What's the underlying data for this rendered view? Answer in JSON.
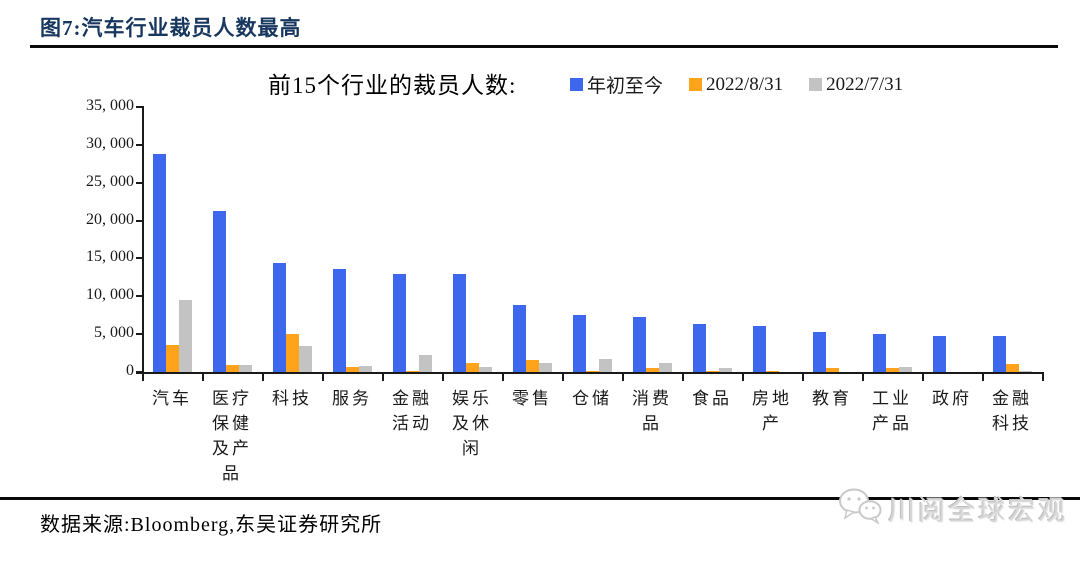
{
  "page": {
    "figure_title": "图7:汽车行业裁员人数最高",
    "source_note": "数据来源:Bloomberg,东吴证券研究所",
    "watermark": "川阅全球宏观"
  },
  "chart": {
    "title": "前15个行业的裁员人数:",
    "legend": [
      {
        "label": "年初至今",
        "color": "#3D68EE"
      },
      {
        "label": "2022/8/31",
        "color": "#FFA31A"
      },
      {
        "label": "2022/7/31",
        "color": "#C3C3C3"
      }
    ],
    "y_axis": {
      "min": 0,
      "max": 35000,
      "step": 5000,
      "tick_labels": [
        "35, 000",
        "30, 000",
        "25, 000",
        "20, 000",
        "15, 000",
        "10, 000",
        "5, 000",
        "0"
      ]
    }
  },
  "chart_data": {
    "type": "bar",
    "title": "前15个行业的裁员人数:",
    "categories": [
      "汽车",
      "医疗保健及产品",
      "科技",
      "服务",
      "金融活动",
      "娱乐及休闲",
      "零售",
      "仓储",
      "消费品",
      "食品",
      "房地产",
      "教育",
      "工业产品",
      "政府",
      "金融科技"
    ],
    "category_label_lines": [
      [
        "汽车"
      ],
      [
        "医疗",
        "保健",
        "及产",
        "品"
      ],
      [
        "科技"
      ],
      [
        "服务"
      ],
      [
        "金融",
        "活动"
      ],
      [
        "娱乐",
        "及休",
        "闲"
      ],
      [
        "零售"
      ],
      [
        "仓储"
      ],
      [
        "消费",
        "品"
      ],
      [
        "食品"
      ],
      [
        "房地",
        "产"
      ],
      [
        "教育"
      ],
      [
        "工业",
        "产品"
      ],
      [
        "政府"
      ],
      [
        "金融",
        "科技"
      ]
    ],
    "series": [
      {
        "key": "ytd",
        "name": "年初至今",
        "color": "#3D68EE",
        "values": [
          28800,
          21200,
          14400,
          13600,
          13000,
          12900,
          8800,
          7500,
          7200,
          6300,
          6100,
          5300,
          5000,
          4800,
          4700
        ]
      },
      {
        "key": "2022-08-31",
        "name": "2022/8/31",
        "color": "#FFA31A",
        "values": [
          3500,
          900,
          5000,
          600,
          100,
          1200,
          1550,
          170,
          550,
          100,
          150,
          500,
          550,
          0,
          1100
        ]
      },
      {
        "key": "2022-07-31",
        "name": "2022/7/31",
        "color": "#C3C3C3",
        "values": [
          9500,
          950,
          3450,
          800,
          2200,
          600,
          1150,
          1700,
          1150,
          500,
          0,
          0,
          700,
          0,
          150
        ]
      }
    ],
    "ylim": [
      0,
      35000
    ],
    "grid": false,
    "legend_position": "top-right"
  }
}
